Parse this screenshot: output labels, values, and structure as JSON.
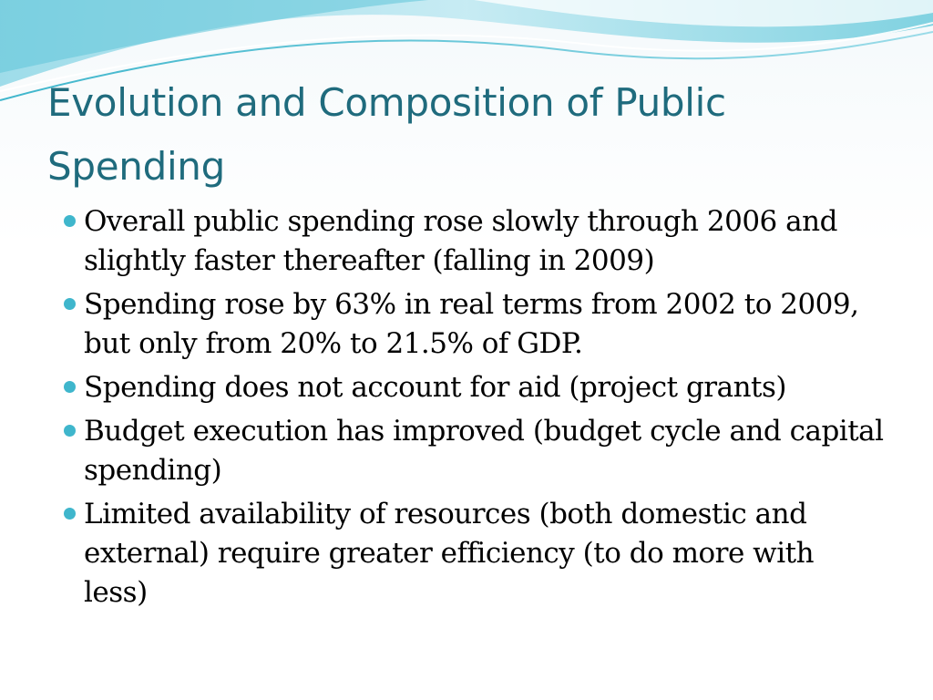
{
  "slide": {
    "title": "Evolution and Composition of Public Spending",
    "bullets": [
      {
        "text": "Overall public spending rose slowly through 2006 and slightly faster thereafter (falling in 2009)"
      },
      {
        "text": "Spending rose by 63% in real terms from 2002 to 2009, but only from 20% to 21.5% of GDP."
      },
      {
        "text": "Spending does not account for aid (project grants)"
      },
      {
        "text": "Budget execution has improved (budget cycle and capital spending)"
      },
      {
        "text": "Limited availability of resources (both domestic and external) require greater efficiency (to do more with less)"
      }
    ]
  },
  "colors": {
    "title": "#1f6b7d",
    "bullet": "#3fb6cc",
    "wave_light": "#bfe7f0",
    "wave_mid": "#7fd0e0",
    "wave_dark": "#3fb6cc"
  }
}
